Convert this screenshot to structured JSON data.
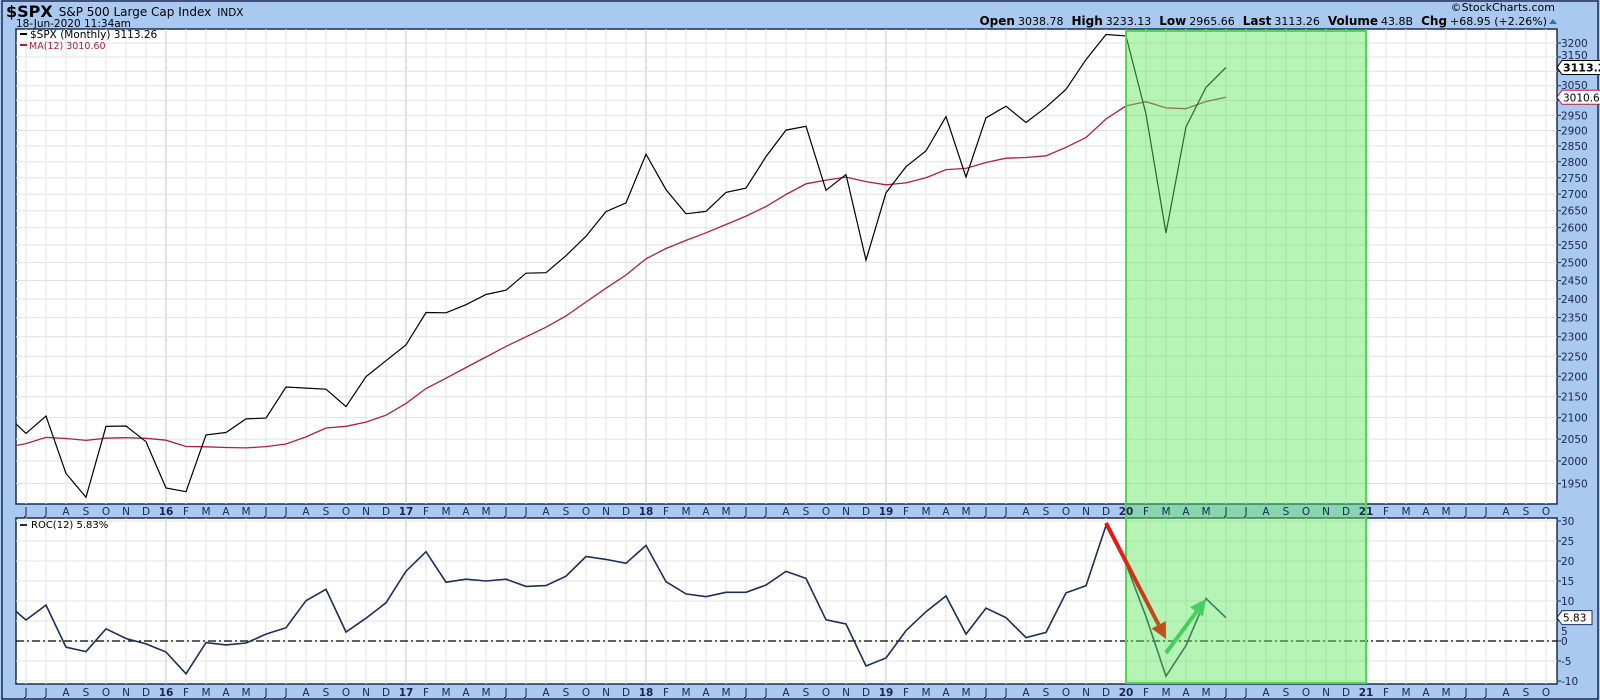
{
  "header": {
    "symbol": "$SPX",
    "name": "S&P 500 Large Cap Index",
    "exchange": "INDX",
    "datetime": "18-Jun-2020 11:34am",
    "copyright": "©StockCharts.com",
    "stats": [
      {
        "label": "Open",
        "value": "3038.78"
      },
      {
        "label": "High",
        "value": "3233.13"
      },
      {
        "label": "Low",
        "value": "2965.66"
      },
      {
        "label": "Last",
        "value": "3113.26"
      },
      {
        "label": "Volume",
        "value": "43.8B"
      },
      {
        "label": "Chg",
        "value": "+68.95 (+2.26%)"
      }
    ],
    "change_icon": "triangle-up-icon"
  },
  "colors": {
    "background": "#a9c9f1",
    "price": "#000000",
    "ma": "#b0203c",
    "roc": "#1c2e55",
    "highlight": "#5ee65e",
    "arrow_down": "#e01010",
    "arrow_up": "#44d060"
  },
  "chart_data": [
    {
      "type": "line",
      "panel": "price",
      "scale": "log",
      "grid": true,
      "legend": [
        {
          "text": "$SPX (Monthly) 3113.26",
          "color": "#000000"
        },
        {
          "text": "MA(12) 3010.60",
          "color": "#b0203c"
        }
      ],
      "value_tags": [
        {
          "text": "3113.26",
          "value": 3113.26,
          "style": "price"
        },
        {
          "text": "3010.60",
          "value": 3010.6,
          "style": "ma"
        }
      ],
      "ylim": [
        1920,
        3250
      ],
      "y_tick_labels": [
        "3200",
        "3150",
        "3050",
        "2950",
        "2900",
        "2850",
        "2800",
        "2750",
        "2700",
        "2650",
        "2600",
        "2550",
        "2500",
        "2450",
        "2400",
        "2350",
        "2300",
        "2250",
        "2200",
        "2150",
        "2100",
        "2050",
        "2000",
        "1950"
      ],
      "dates": [
        "2015-05",
        "2015-06",
        "2015-07",
        "2015-08",
        "2015-09",
        "2015-10",
        "2015-11",
        "2015-12",
        "2016-01",
        "2016-02",
        "2016-03",
        "2016-04",
        "2016-05",
        "2016-06",
        "2016-07",
        "2016-08",
        "2016-09",
        "2016-10",
        "2016-11",
        "2016-12",
        "2017-01",
        "2017-02",
        "2017-03",
        "2017-04",
        "2017-05",
        "2017-06",
        "2017-07",
        "2017-08",
        "2017-09",
        "2017-10",
        "2017-11",
        "2017-12",
        "2018-01",
        "2018-02",
        "2018-03",
        "2018-04",
        "2018-05",
        "2018-06",
        "2018-07",
        "2018-08",
        "2018-09",
        "2018-10",
        "2018-11",
        "2018-12",
        "2019-01",
        "2019-02",
        "2019-03",
        "2019-04",
        "2019-05",
        "2019-06",
        "2019-07",
        "2019-08",
        "2019-09",
        "2019-10",
        "2019-11",
        "2019-12",
        "2020-01",
        "2020-02",
        "2020-03",
        "2020-04",
        "2020-05",
        "2020-06"
      ],
      "series": [
        {
          "name": "$SPX (Monthly)",
          "values": [
            2107.39,
            2063.11,
            2103.84,
            1972.18,
            1920.03,
            2079.36,
            2080.41,
            2043.94,
            1940.24,
            1932.23,
            2059.74,
            2065.3,
            2096.95,
            2098.86,
            2173.6,
            2170.95,
            2168.27,
            2126.15,
            2198.81,
            2238.83,
            2278.87,
            2363.64,
            2362.72,
            2384.2,
            2411.8,
            2423.41,
            2470.3,
            2471.65,
            2519.36,
            2575.26,
            2647.58,
            2673.61,
            2823.81,
            2713.83,
            2640.87,
            2648.05,
            2705.27,
            2718.37,
            2816.29,
            2901.52,
            2913.98,
            2711.74,
            2760.17,
            2506.85,
            2704.1,
            2784.49,
            2834.4,
            2945.83,
            2752.06,
            2941.76,
            2980.38,
            2926.46,
            2976.74,
            3037.56,
            3140.98,
            3230.78,
            3225.52,
            2954.22,
            2584.59,
            2912.43,
            3044.31,
            3113.26
          ]
        },
        {
          "name": "MA(12)",
          "values": [
            2030.9,
            2039.5,
            2053.9,
            2051.4,
            2047.0,
            2052.1,
            2053.2,
            2051.9,
            2047.4,
            2033.0,
            2032.3,
            2030.6,
            2029.8,
            2032.8,
            2038.6,
            2055.1,
            2075.8,
            2079.7,
            2089.6,
            2105.8,
            2134.0,
            2170.0,
            2195.2,
            2221.8,
            2248.1,
            2275.1,
            2299.8,
            2324.9,
            2354.1,
            2391.6,
            2429.0,
            2465.2,
            2510.6,
            2539.8,
            2563.0,
            2585.0,
            2609.4,
            2634.0,
            2662.8,
            2698.7,
            2731.5,
            2742.9,
            2752.3,
            2738.4,
            2728.4,
            2734.3,
            2750.4,
            2775.3,
            2779.2,
            2797.8,
            2811.4,
            2813.5,
            2818.7,
            2845.9,
            2877.6,
            2938.0,
            2981.4,
            2995.6,
            2974.7,
            2972.0,
            2996.3,
            3010.6
          ]
        }
      ],
      "highlight": {
        "from": "2020-01",
        "to": "2021-01"
      }
    },
    {
      "type": "line",
      "panel": "indicator",
      "grid": true,
      "legend": [
        {
          "text": "ROC(12) 5.83%",
          "color": "#1c2e55"
        }
      ],
      "value_tags": [
        {
          "text": "5.83",
          "value": 5.83
        }
      ],
      "ylim": [
        -10,
        30
      ],
      "y_tick_labels": [
        "30",
        "25",
        "20",
        "15",
        "10",
        "5",
        "0",
        "-5",
        "-10"
      ],
      "reference_line": 0,
      "series": [
        {
          "name": "ROC(12)",
          "values": [
            9.56,
            5.25,
            8.97,
            -1.56,
            -2.65,
            3.04,
            0.62,
            -0.73,
            -2.74,
            -8.19,
            -0.39,
            -0.97,
            -0.5,
            1.73,
            3.32,
            10.08,
            12.93,
            2.25,
            5.69,
            9.54,
            17.45,
            22.33,
            14.71,
            15.44,
            15.01,
            15.46,
            13.65,
            13.85,
            16.19,
            21.12,
            20.41,
            19.42,
            23.91,
            14.82,
            11.77,
            11.07,
            12.17,
            12.17,
            14.01,
            17.39,
            15.66,
            5.3,
            4.25,
            -6.24,
            -4.24,
            2.6,
            7.33,
            11.25,
            1.73,
            8.22,
            5.83,
            0.86,
            2.15,
            12.02,
            13.8,
            28.88,
            19.28,
            6.1,
            -8.81,
            -1.13,
            10.62,
            5.83
          ]
        }
      ],
      "annotations": [
        {
          "type": "arrow",
          "color": "#e01010",
          "from": {
            "date": "2019-12",
            "value": 29.5
          },
          "to": {
            "date": "2020-03",
            "value": 0.5
          }
        },
        {
          "type": "arrow",
          "color": "#44d060",
          "from": {
            "date": "2020-03",
            "value": -3.0
          },
          "to": {
            "date": "2020-05",
            "value": 10.5
          }
        }
      ]
    }
  ],
  "x_axis": {
    "start": "2015-06",
    "tick_labels": [
      "J",
      "J",
      "A",
      "S",
      "O",
      "N",
      "D",
      "16",
      "F",
      "M",
      "A",
      "M",
      "J",
      "J",
      "A",
      "S",
      "O",
      "N",
      "D",
      "17",
      "F",
      "M",
      "A",
      "M",
      "J",
      "J",
      "A",
      "S",
      "O",
      "N",
      "D",
      "18",
      "F",
      "M",
      "A",
      "M",
      "J",
      "J",
      "A",
      "S",
      "O",
      "N",
      "D",
      "19",
      "F",
      "M",
      "A",
      "M",
      "J",
      "J",
      "A",
      "S",
      "O",
      "N",
      "D",
      "20",
      "F",
      "M",
      "A",
      "M",
      "J",
      "J",
      "A",
      "S",
      "O",
      "N",
      "D",
      "21",
      "F",
      "M",
      "A",
      "M",
      "J",
      "J",
      "A",
      "S",
      "O"
    ]
  }
}
